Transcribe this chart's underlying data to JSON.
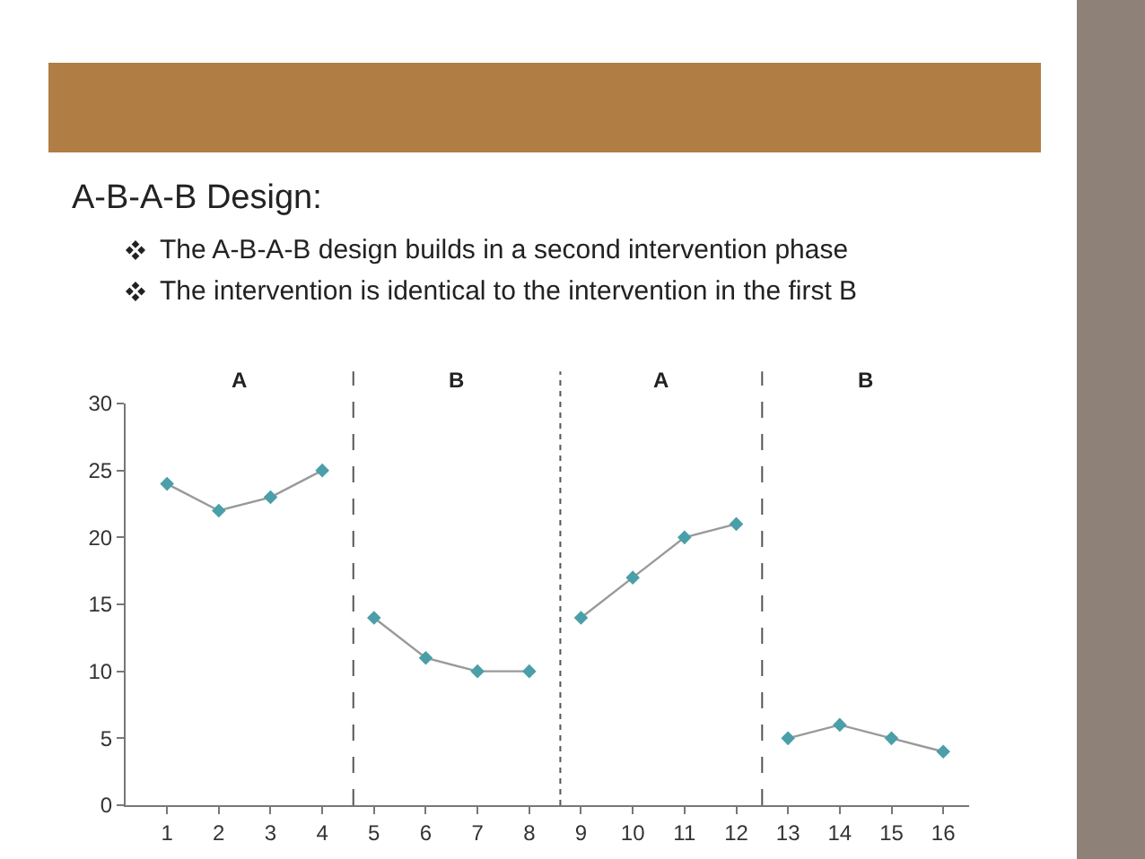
{
  "chart_data": {
    "type": "line",
    "title": "A-B-A-B Design:",
    "annotations": [
      "The A-B-A-B design builds in a second intervention phase",
      "The intervention is identical to the intervention in the first B",
      "A",
      "B",
      "A",
      "B"
    ],
    "series": [
      {
        "color": "#4a9fa8",
        "x": [
          1,
          2,
          3,
          4
        ],
        "values": [
          24,
          22,
          23,
          25
        ]
      },
      {
        "color": "#4a9fa8",
        "x": [
          5,
          6,
          7,
          8
        ],
        "values": [
          14,
          11,
          10,
          10
        ]
      },
      {
        "color": "#4a9fa8",
        "x": [
          9,
          10,
          11,
          12
        ],
        "values": [
          14,
          17,
          20,
          21
        ]
      },
      {
        "color": "#4a9fa8",
        "x": [
          13,
          14,
          15,
          16
        ],
        "values": [
          5,
          6,
          5,
          4
        ]
      }
    ],
    "xlim": [
      0.2,
      16.5
    ],
    "xticks": [
      1,
      2,
      3,
      4,
      5,
      6,
      7,
      8,
      9,
      10,
      11,
      12,
      13,
      14,
      15,
      16
    ],
    "ylim": [
      0,
      30
    ],
    "yticks": [
      0,
      5,
      10,
      15,
      20,
      25,
      30
    ],
    "ref_lines": [
      {
        "axis": "x",
        "value": 4.6,
        "line_style": "dashed",
        "color": "#555555"
      },
      {
        "axis": "x",
        "value": 8.6,
        "line_style": "dotted",
        "color": "#555555"
      },
      {
        "axis": "x",
        "value": 12.5,
        "line_style": "dashed",
        "color": "#555555"
      }
    ],
    "marker": "diamond",
    "line_style": "solid",
    "grid": false
  }
}
